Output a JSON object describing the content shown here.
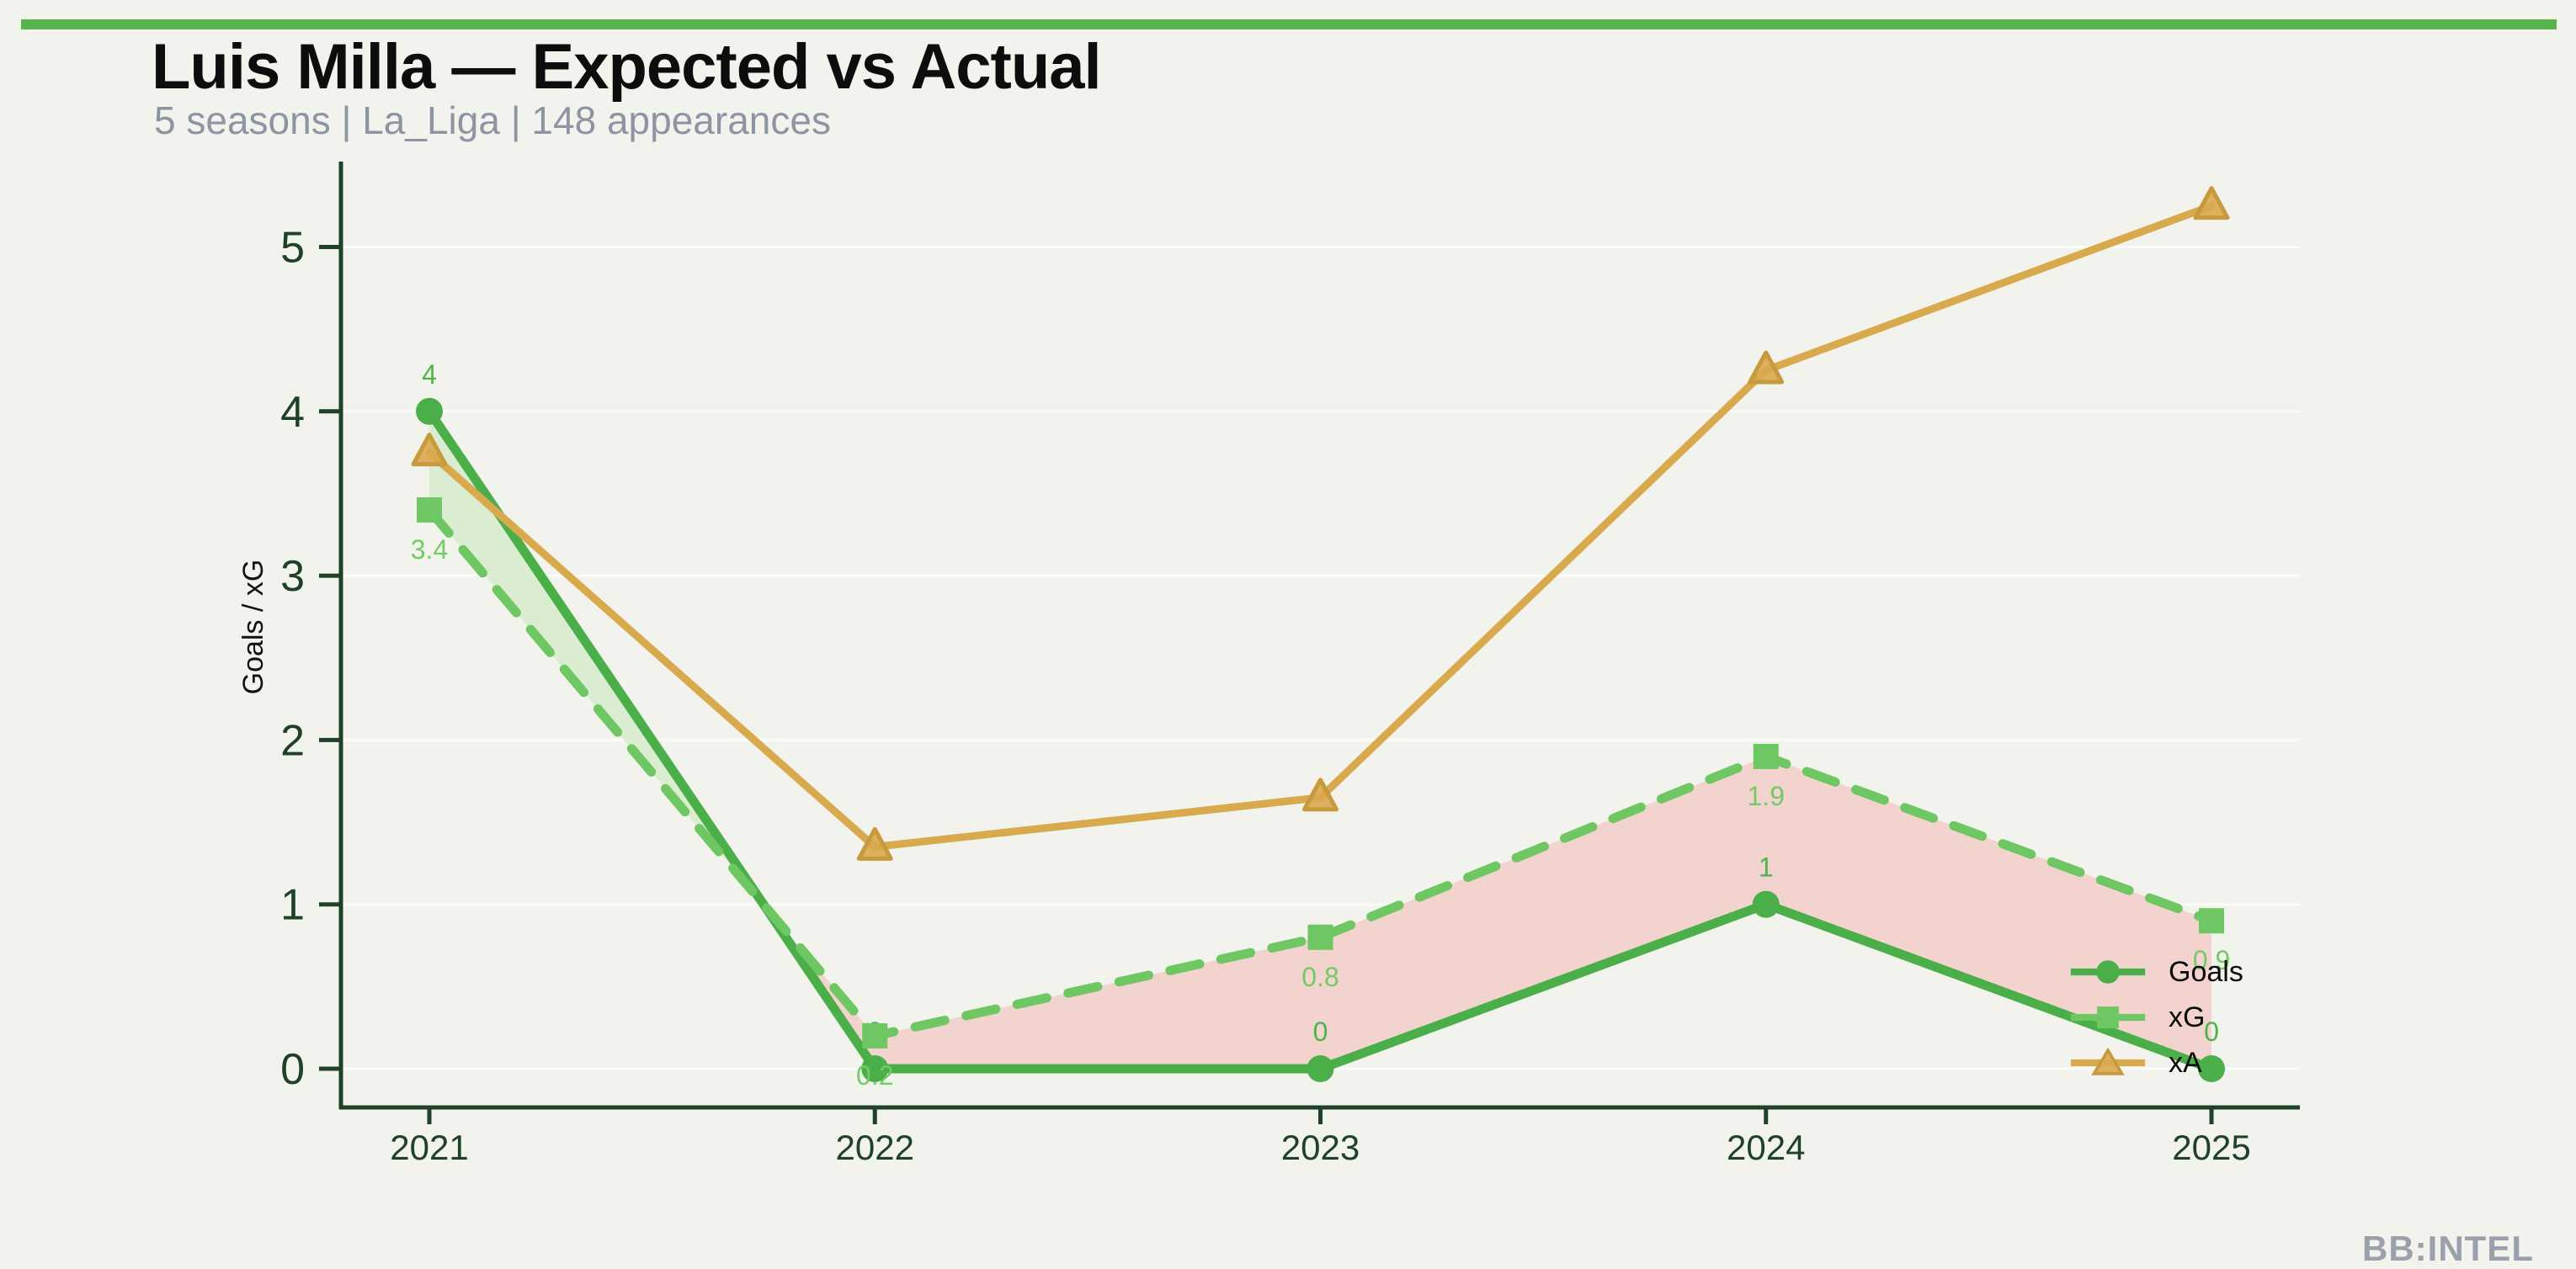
{
  "header": {
    "title": "Luis Milla — Expected vs Actual",
    "subtitle": "5 seasons | La_Liga | 148 appearances"
  },
  "watermark": "BB:INTEL",
  "colors": {
    "background": "#f2f3ec",
    "accent_bar": "#56b44c",
    "axis": "#1e4128",
    "tick_label": "#1e4128",
    "title": "#0d0d0d",
    "subtitle": "#8d95a3",
    "watermark": "#9aa1ac",
    "gridline": "rgba(255,255,255,0.65)",
    "axis_label": "#111111"
  },
  "chart_data": {
    "type": "line",
    "x_categories": [
      "2021",
      "2022",
      "2023",
      "2024",
      "2025"
    ],
    "ylabel": "Goals / xG",
    "yticks": [
      0,
      1,
      2,
      3,
      4,
      5
    ],
    "ylim": [
      0,
      5.55
    ],
    "grid": true,
    "legend_position": "right-bottom",
    "series": [
      {
        "name": "Goals",
        "values": [
          4,
          0,
          0,
          1,
          0
        ],
        "point_labels": [
          "4",
          "0",
          "0",
          "1",
          "0"
        ],
        "label_side": "above",
        "color": "#4aae49",
        "label_color": "#4db44c",
        "marker": "circle",
        "line_style": "solid"
      },
      {
        "name": "xG",
        "values": [
          3.4,
          0.2,
          0.8,
          1.9,
          0.9
        ],
        "point_labels": [
          "3.4",
          "0.2",
          "0.8",
          "1.9",
          "0.9"
        ],
        "label_side": "below",
        "color": "#6fc763",
        "label_color": "#74ca67",
        "marker": "square",
        "line_style": "dashed"
      },
      {
        "name": "xA",
        "values": [
          3.75,
          1.35,
          1.65,
          4.25,
          5.25
        ],
        "point_labels": [],
        "label_side": "none",
        "color": "#d9a94e",
        "marker_stroke": "#c89a3e",
        "marker": "triangle",
        "line_style": "solid"
      }
    ],
    "shading": {
      "between": [
        "Goals",
        "xG"
      ],
      "over_color": "#d6ebcc",
      "under_color": "#f2cdc9"
    }
  }
}
